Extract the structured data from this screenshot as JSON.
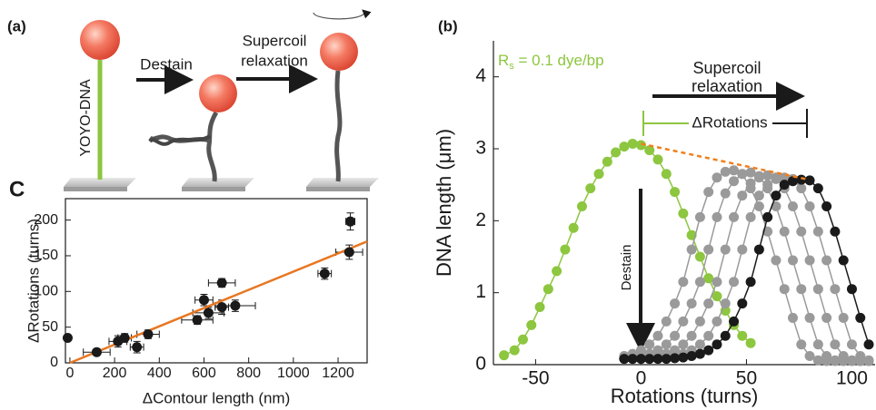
{
  "diagram": {
    "panel_label": "(a)",
    "dna_label": "YOYO-DNA",
    "step1": "Destain",
    "step2": [
      "Supercoil",
      "relaxation"
    ]
  },
  "chart_data": [
    {
      "type": "scatter",
      "panel_label": "C",
      "x_label": "ΔContour length (nm)",
      "y_label": "ΔRotations (turns)",
      "xlim": [
        -20,
        1330
      ],
      "ylim": [
        0,
        230
      ],
      "xticks": [
        0,
        200,
        400,
        600,
        800,
        1000,
        1200
      ],
      "yticks": [
        0,
        50,
        100,
        150,
        200
      ],
      "series": [
        {
          "color": "#1a1a1a",
          "x": [
            -10,
            120,
            215,
            245,
            300,
            350,
            570,
            600,
            620,
            680,
            680,
            740,
            1140,
            1250,
            1255
          ],
          "y": [
            35,
            15,
            30,
            35,
            22,
            40,
            60,
            88,
            70,
            78,
            112,
            80,
            125,
            155,
            198
          ],
          "xerr": [
            0,
            60,
            40,
            30,
            30,
            50,
            70,
            40,
            70,
            30,
            60,
            90,
            30,
            60,
            20
          ],
          "yerr": [
            0,
            0,
            8,
            6,
            8,
            6,
            6,
            8,
            8,
            10,
            6,
            8,
            8,
            10,
            12
          ]
        }
      ],
      "fit": {
        "x": [
          0,
          1330
        ],
        "y": [
          0,
          170
        ],
        "color": "#e87722"
      }
    },
    {
      "type": "line",
      "panel_label": "(b)",
      "x_label": "Rotations (turns)",
      "y_label": "DNA length (μm)",
      "xlim": [
        -70,
        111
      ],
      "ylim": [
        0,
        4.5
      ],
      "xticks": [
        -50,
        0,
        50,
        100
      ],
      "yticks": [
        0,
        1,
        2,
        3,
        4
      ],
      "series": [
        {
          "color": "#8dc63f",
          "x": [
            -65,
            -60,
            -56,
            -52,
            -48,
            -44,
            -40,
            -36,
            -32,
            -28,
            -24,
            -20,
            -16,
            -12,
            -8,
            -4,
            0,
            4,
            8,
            12,
            16,
            20,
            24,
            28,
            32,
            36,
            40,
            44,
            48,
            52
          ],
          "values": [
            0.13,
            0.2,
            0.35,
            0.55,
            0.8,
            1.05,
            1.3,
            1.6,
            1.9,
            2.2,
            2.45,
            2.65,
            2.82,
            2.95,
            3.03,
            3.07,
            3.05,
            2.98,
            2.85,
            2.65,
            2.4,
            2.1,
            1.8,
            1.5,
            1.2,
            0.95,
            0.75,
            0.55,
            0.4,
            0.3
          ]
        },
        {
          "color": "#9a9a9a",
          "x": [
            -8,
            -4,
            0,
            4,
            8,
            12,
            16,
            20,
            24,
            28,
            32,
            36,
            40,
            44,
            48,
            52,
            56,
            60,
            64,
            68,
            72,
            76,
            80,
            84,
            88,
            92,
            96,
            100,
            104,
            108
          ],
          "values": [
            0.12,
            0.15,
            0.2,
            0.28,
            0.4,
            0.6,
            0.85,
            1.15,
            1.6,
            2.05,
            2.4,
            2.6,
            2.68,
            2.7,
            2.65,
            2.45,
            2.2,
            1.85,
            1.45,
            1.05,
            0.65,
            0.28,
            0.12,
            0.06,
            0.05,
            0.05,
            0.05,
            0.05,
            0.05,
            0.05
          ]
        },
        {
          "color": "#9a9a9a",
          "x": [
            -8,
            -4,
            0,
            4,
            8,
            12,
            16,
            20,
            24,
            28,
            32,
            36,
            40,
            44,
            48,
            52,
            56,
            60,
            64,
            68,
            72,
            76,
            80,
            84,
            88,
            92,
            96,
            100,
            104,
            108
          ],
          "values": [
            0.09,
            0.1,
            0.12,
            0.15,
            0.2,
            0.28,
            0.4,
            0.6,
            0.85,
            1.15,
            1.6,
            2.05,
            2.38,
            2.55,
            2.65,
            2.67,
            2.62,
            2.45,
            2.2,
            1.85,
            1.45,
            1.05,
            0.65,
            0.28,
            0.12,
            0.06,
            0.05,
            0.05,
            0.05,
            0.05
          ]
        },
        {
          "color": "#9a9a9a",
          "x": [
            -8,
            -4,
            0,
            4,
            8,
            12,
            16,
            20,
            24,
            28,
            32,
            36,
            40,
            44,
            48,
            52,
            56,
            60,
            64,
            68,
            72,
            76,
            80,
            84,
            88,
            92,
            96,
            100,
            104,
            108
          ],
          "values": [
            0.08,
            0.08,
            0.09,
            0.1,
            0.12,
            0.15,
            0.2,
            0.28,
            0.4,
            0.6,
            0.85,
            1.15,
            1.6,
            2.05,
            2.35,
            2.52,
            2.6,
            2.63,
            2.6,
            2.45,
            2.2,
            1.85,
            1.45,
            1.05,
            0.65,
            0.28,
            0.12,
            0.06,
            0.05,
            0.05
          ]
        },
        {
          "color": "#9a9a9a",
          "x": [
            -8,
            -4,
            0,
            4,
            8,
            12,
            16,
            20,
            24,
            28,
            32,
            36,
            40,
            44,
            48,
            52,
            56,
            60,
            64,
            68,
            72,
            76,
            80,
            84,
            88,
            92,
            96,
            100,
            104,
            108
          ],
          "values": [
            0.08,
            0.08,
            0.08,
            0.08,
            0.09,
            0.1,
            0.12,
            0.15,
            0.2,
            0.28,
            0.4,
            0.6,
            0.85,
            1.15,
            1.6,
            2.05,
            2.35,
            2.5,
            2.58,
            2.6,
            2.58,
            2.45,
            2.2,
            1.85,
            1.45,
            1.05,
            0.65,
            0.28,
            0.12,
            0.06
          ]
        },
        {
          "color": "#1a1a1a",
          "x": [
            -8,
            -4,
            0,
            4,
            8,
            12,
            16,
            20,
            24,
            28,
            32,
            36,
            40,
            44,
            48,
            52,
            56,
            60,
            64,
            68,
            72,
            76,
            80,
            84,
            88,
            92,
            96,
            100,
            104,
            108
          ],
          "values": [
            0.08,
            0.08,
            0.08,
            0.08,
            0.08,
            0.08,
            0.09,
            0.1,
            0.12,
            0.15,
            0.2,
            0.28,
            0.4,
            0.6,
            0.85,
            1.15,
            1.6,
            2.05,
            2.35,
            2.5,
            2.55,
            2.57,
            2.56,
            2.45,
            2.2,
            1.85,
            1.45,
            1.05,
            0.65,
            0.28
          ]
        }
      ],
      "trend": {
        "x": [
          0,
          78
        ],
        "y": [
          3.07,
          2.58
        ],
        "color": "#f07f1e"
      },
      "annotations": {
        "rs": [
          "R",
          "s",
          " = 0.1 dye/bp"
        ],
        "relaxation": [
          "Supercoil",
          "relaxation"
        ],
        "delta": "ΔRotations",
        "destain": "Destain"
      }
    }
  ]
}
